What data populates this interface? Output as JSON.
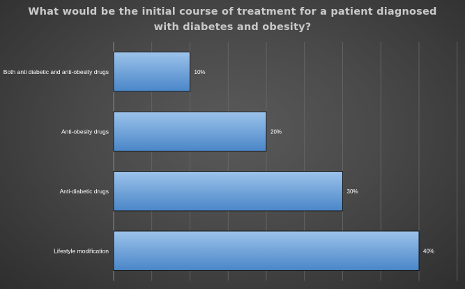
{
  "chart_data": {
    "type": "bar",
    "orientation": "horizontal",
    "title": "What would be the initial course of treatment for a patient diagnosed with diabetes and obesity?",
    "categories": [
      "Both anti diabetic and anti-obesity drugs",
      "Anti-obesity drugs",
      "Anti-diabetic drugs",
      "Lifestyle modification"
    ],
    "values": [
      10,
      20,
      30,
      40
    ],
    "data_labels": [
      "10%",
      "20%",
      "30%",
      "40%"
    ],
    "value_unit": "%",
    "xlim": [
      0,
      45
    ],
    "grid": true,
    "legend": "none",
    "colors": {
      "bar_top": "#9cc3eb",
      "bar_bottom": "#4a86c8",
      "bar_edge": "#1a1a1a",
      "grid": "#6a6a6a",
      "axis": "#8a8a8a",
      "text": "#ffffff",
      "title": "#c9c9c9"
    }
  }
}
